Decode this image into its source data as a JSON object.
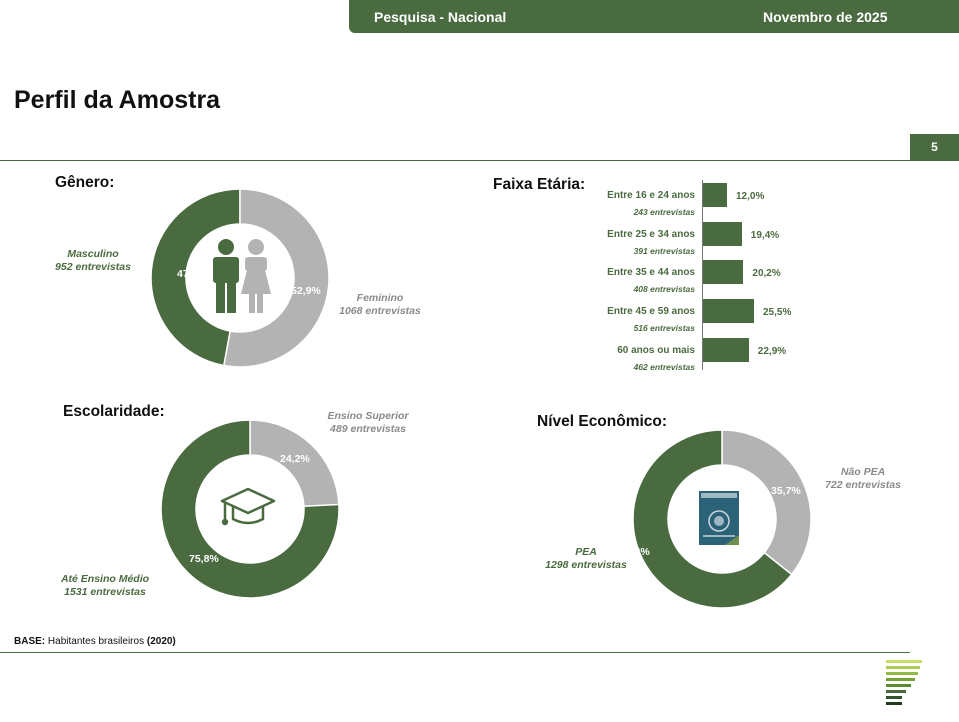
{
  "header": {
    "left": "Pesquisa - Nacional",
    "right": "Novembro de 2025"
  },
  "page_title": "Perfil da Amostra",
  "page_number": "5",
  "base_note": {
    "label": "BASE:",
    "text": "Habitantes brasileiros",
    "year": "(2020)"
  },
  "colors": {
    "green": "#4a6b3f",
    "grey": "#b3b3b3",
    "white": "#ffffff"
  },
  "chart_data": [
    {
      "type": "pie",
      "title": "Gênero:",
      "center_icon": "people-icon",
      "categories": [
        "Masculino",
        "Feminino"
      ],
      "values": [
        47.1,
        52.9
      ],
      "value_labels": [
        "47,1%",
        "52,9%"
      ],
      "counts": [
        "952 entrevistas",
        "1068 entrevistas"
      ]
    },
    {
      "type": "bar",
      "orientation": "horizontal",
      "title": "Faixa Etária:",
      "categories": [
        "Entre 16 e 24 anos",
        "Entre 25 e 34 anos",
        "Entre 35 e 44 anos",
        "Entre 45 e 59 anos",
        "60 anos ou mais"
      ],
      "values": [
        12.0,
        19.4,
        20.2,
        25.5,
        22.9
      ],
      "value_labels": [
        "12,0%",
        "19,4%",
        "20,2%",
        "25,5%",
        "22,9%"
      ],
      "counts": [
        "243 entrevistas",
        "391 entrevistas",
        "408 entrevistas",
        "516 entrevistas",
        "462 entrevistas"
      ]
    },
    {
      "type": "pie",
      "title": "Escolaridade:",
      "center_icon": "graduation-cap-icon",
      "categories": [
        "Ensino Superior",
        "Até Ensino Médio"
      ],
      "values": [
        24.2,
        75.8
      ],
      "value_labels": [
        "24,2%",
        "75,8%"
      ],
      "counts": [
        "489 entrevistas",
        "1531 entrevistas"
      ]
    },
    {
      "type": "pie",
      "title": "Nível Econômico:",
      "center_icon": "work-card-icon",
      "categories": [
        "Não PEA",
        "PEA"
      ],
      "values": [
        35.7,
        64.3
      ],
      "value_labels": [
        "35,7%",
        "64,3%"
      ],
      "counts": [
        "722 entrevistas",
        "1298 entrevistas"
      ]
    }
  ]
}
